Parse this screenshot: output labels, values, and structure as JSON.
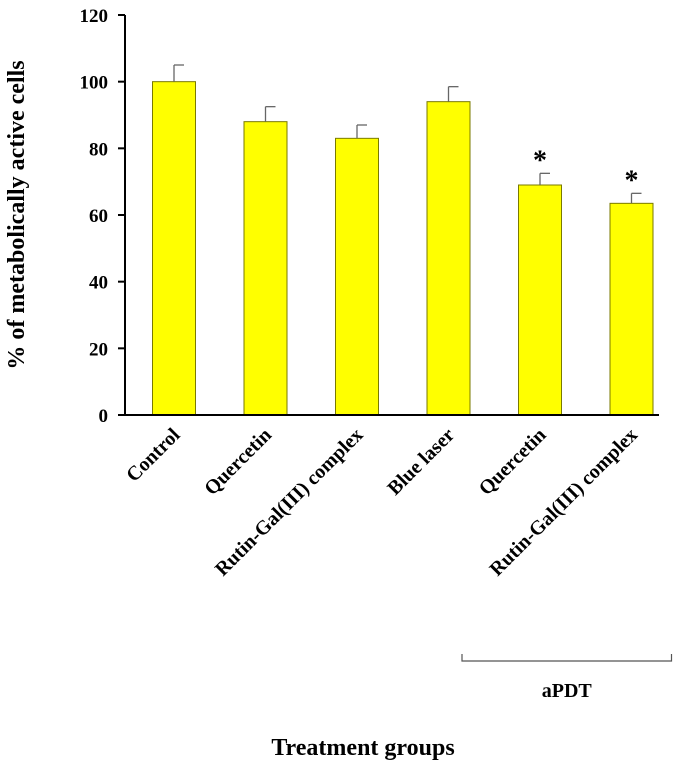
{
  "chart_data": {
    "type": "bar",
    "categories": [
      "Control",
      "Quercetin",
      "Rutin-Gal(III) complex",
      "Blue laser",
      "Quercetin",
      "Rutin-Gal(III) complex"
    ],
    "values": [
      100,
      88,
      83,
      94,
      69,
      63.5
    ],
    "errors": [
      5,
      4.5,
      4,
      4.5,
      3.5,
      3
    ],
    "significance": [
      "",
      "",
      "",
      "",
      "*",
      "*"
    ],
    "xlabel": "Treatment groups",
    "ylabel": "% of metabolically active cells",
    "ylim": [
      0,
      120
    ],
    "yticks": [
      "0",
      "20",
      "40",
      "60",
      "80",
      "100",
      "120"
    ],
    "group_bracket": {
      "label": "aPDT",
      "from_index": 4,
      "to_index": 5
    },
    "bar_color": "#ffff00",
    "bar_edge_color": "#7a7a00",
    "grid": false,
    "legend": "none"
  }
}
